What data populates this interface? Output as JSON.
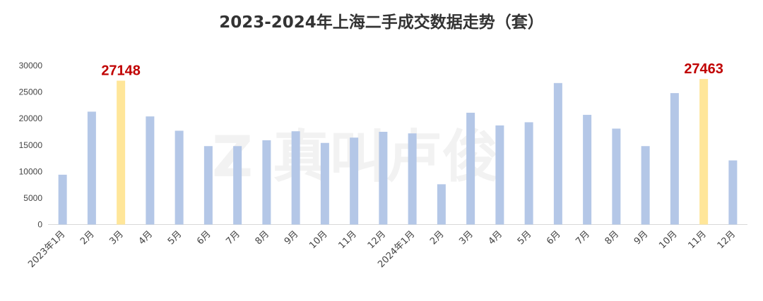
{
  "chart_data": {
    "type": "bar",
    "title": "2023-2024年上海二手成交数据走势（套）",
    "categories": [
      "2023年1月",
      "2月",
      "3月",
      "4月",
      "5月",
      "6月",
      "7月",
      "8月",
      "9月",
      "10月",
      "11月",
      "12月",
      "2024年1月",
      "2月",
      "3月",
      "4月",
      "5月",
      "6月",
      "7月",
      "8月",
      "9月",
      "10月",
      "11月",
      "12月"
    ],
    "values": [
      9400,
      21300,
      27148,
      20400,
      17700,
      14800,
      14800,
      15900,
      17600,
      15400,
      16400,
      17500,
      17200,
      7600,
      21100,
      18700,
      19300,
      26700,
      20700,
      18100,
      14800,
      24800,
      27463,
      12100
    ],
    "data_labels": [
      {
        "index": 2,
        "text": "27148"
      },
      {
        "index": 22,
        "text": "27463"
      }
    ],
    "ylim": [
      0,
      30000
    ],
    "yticks": [
      "0",
      "5000",
      "10000",
      "15000",
      "20000",
      "25000",
      "30000"
    ],
    "grid": false,
    "colors": {
      "bar": "#b4c7e7",
      "highlight": "#ffe699",
      "label": "#c00000"
    },
    "watermark": "真叫卢俊"
  }
}
